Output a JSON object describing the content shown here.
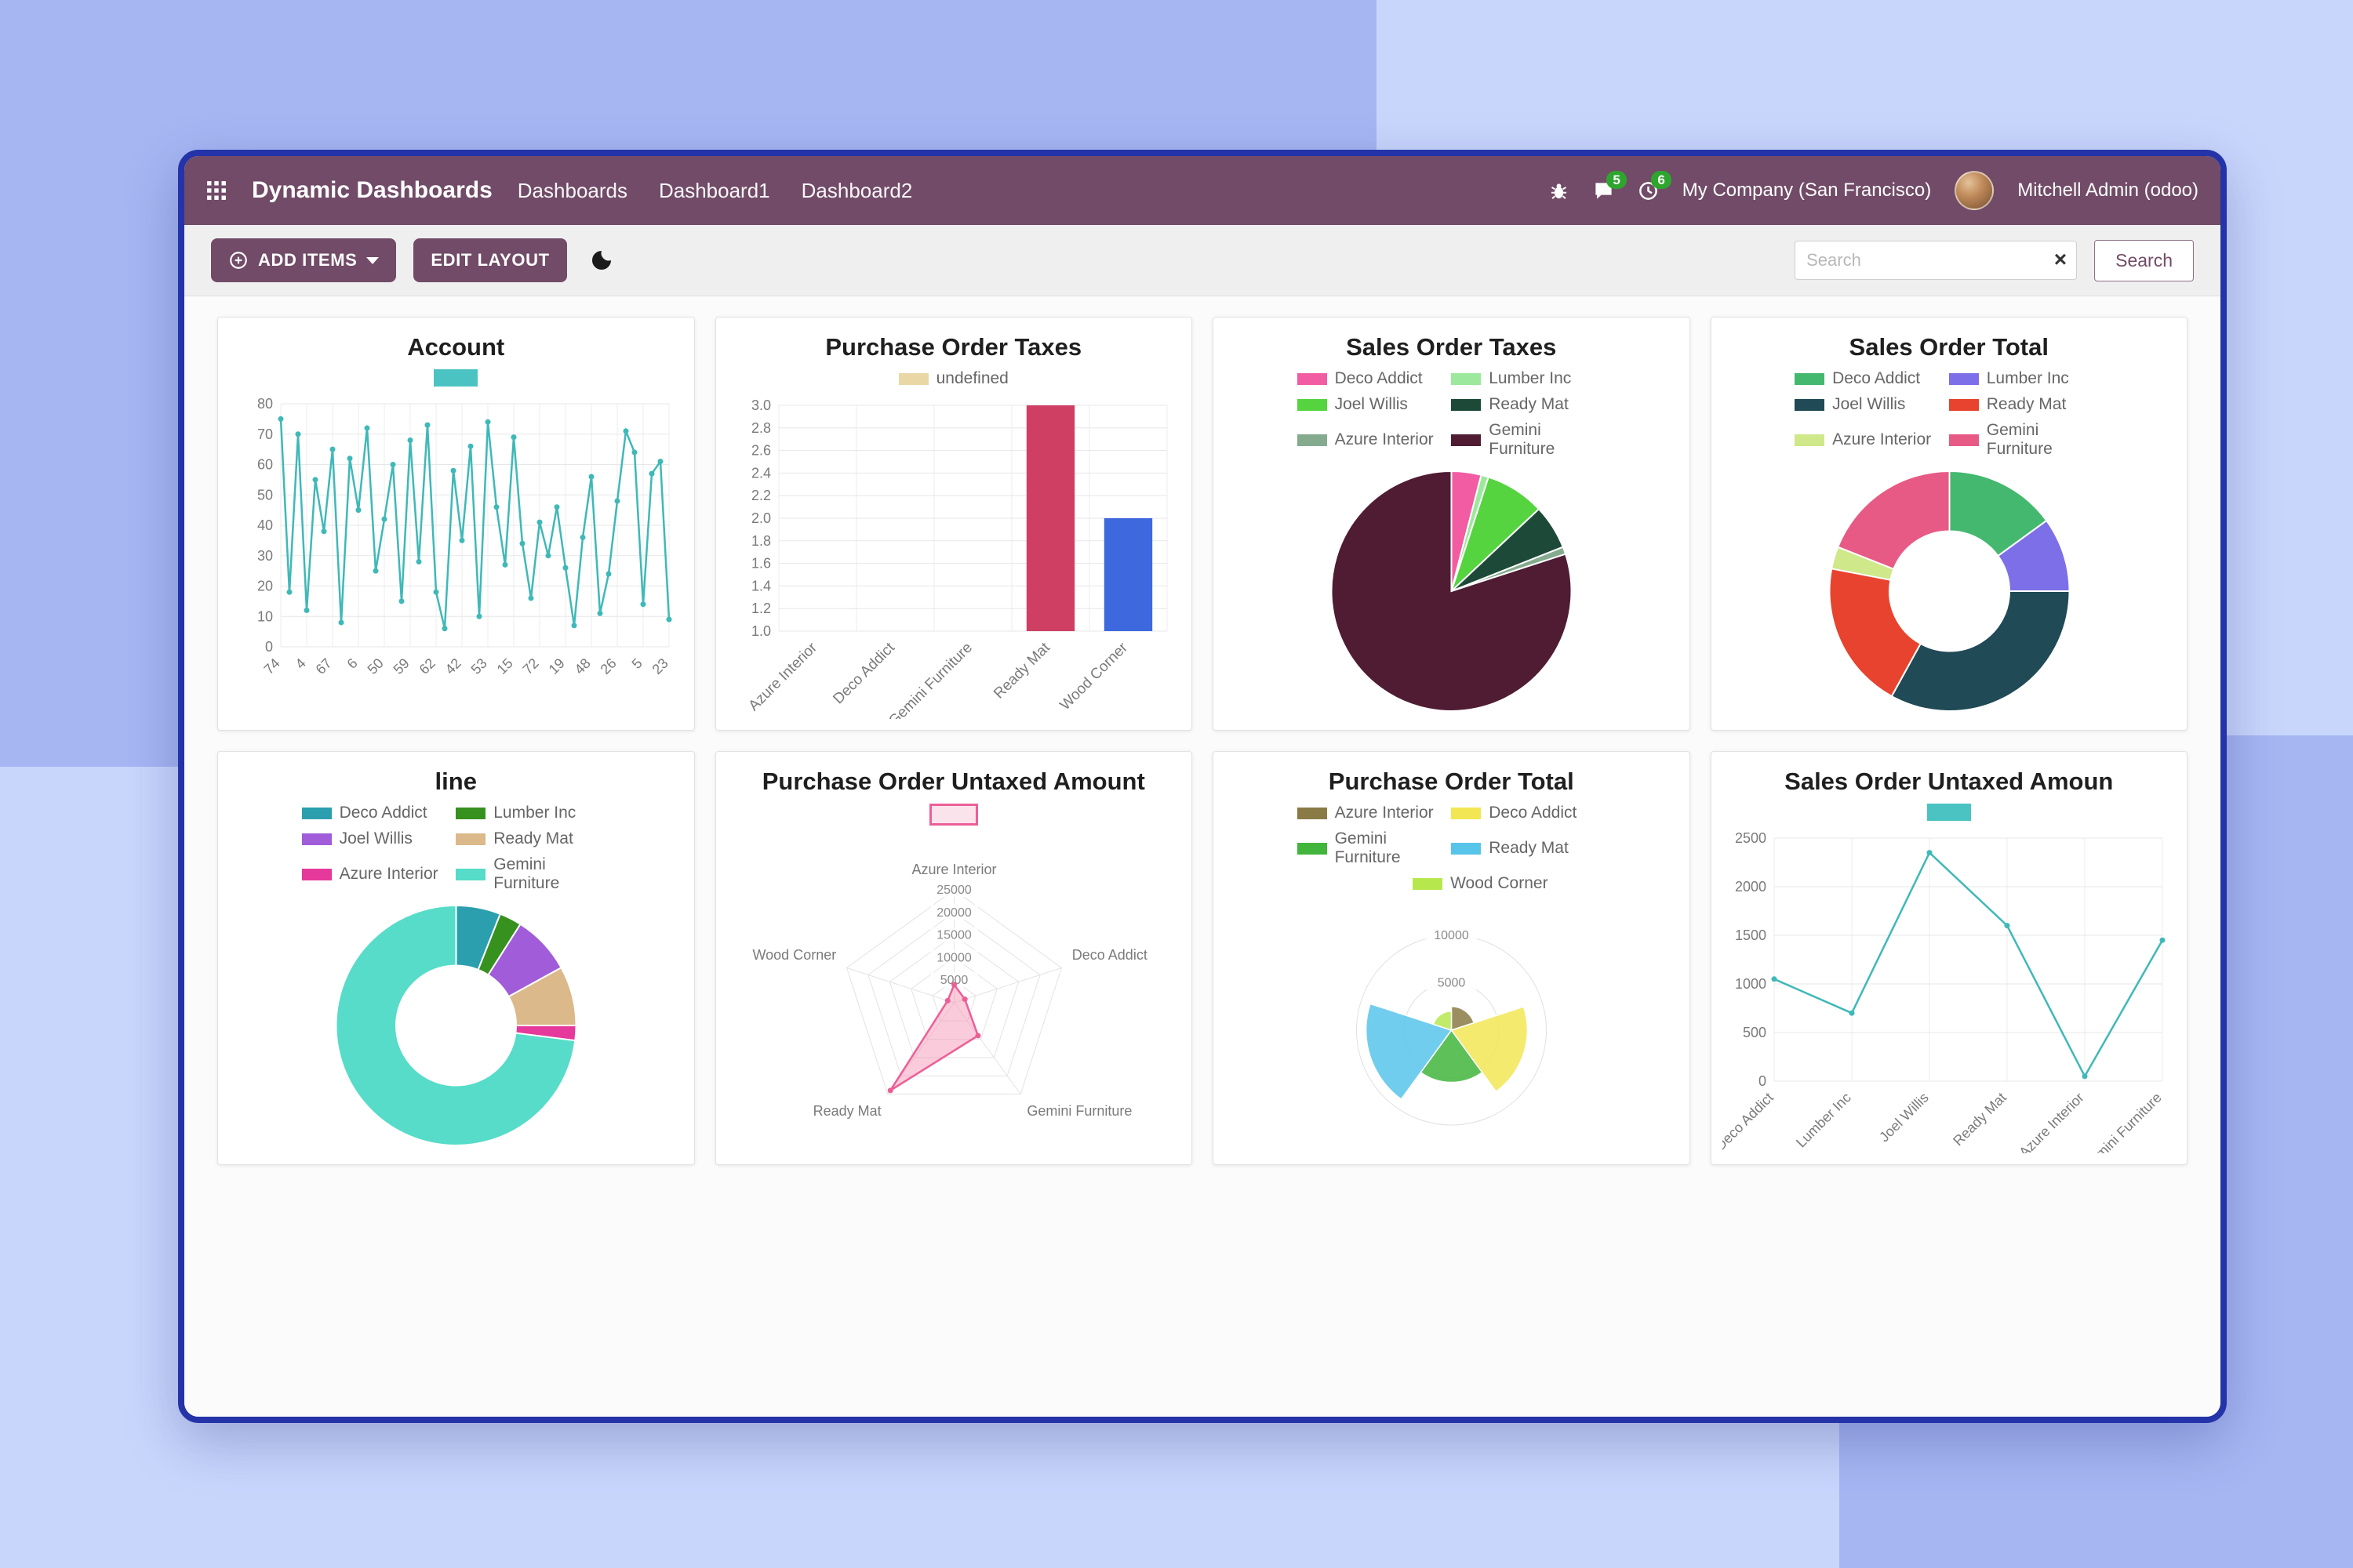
{
  "navbar": {
    "title": "Dynamic Dashboards",
    "menu": [
      "Dashboards",
      "Dashboard1",
      "Dashboard2"
    ],
    "badges": {
      "messages": "5",
      "activities": "6"
    },
    "company": "My Company (San Francisco)",
    "user": "Mitchell Admin (odoo)",
    "color": "#714B67"
  },
  "controlbar": {
    "add_items_label": "ADD ITEMS",
    "edit_layout_label": "EDIT LAYOUT",
    "search_placeholder": "Search",
    "search_button_label": "Search"
  },
  "chart_data": [
    {
      "title": "Account",
      "type": "line",
      "color": "#3fb8b8",
      "legend": [
        {
          "label": "",
          "color": "#4cc3c3"
        }
      ],
      "labels": [
        "74",
        "4",
        "67",
        "6",
        "50",
        "59",
        "62",
        "42",
        "53",
        "15",
        "72",
        "19",
        "48",
        "26",
        "5",
        "23"
      ],
      "values": [
        75,
        18,
        70,
        12,
        55,
        38,
        65,
        8,
        62,
        45,
        72,
        25,
        42,
        60,
        15,
        68,
        28,
        73,
        18,
        6,
        58,
        35,
        66,
        10,
        74,
        46,
        27,
        69,
        34,
        16,
        41,
        30,
        46,
        26,
        7,
        36,
        56,
        11,
        24,
        48,
        71,
        64,
        14,
        57,
        61,
        9
      ],
      "ylim": [
        0,
        80
      ],
      "yticks": [
        0,
        10,
        20,
        30,
        40,
        50,
        60,
        70,
        80
      ],
      "grid": true
    },
    {
      "title": "Purchase Order Taxes",
      "type": "bar",
      "legend": [
        {
          "label": "undefined",
          "color": "#e9d8a6"
        }
      ],
      "categories": [
        "Azure Interior",
        "Deco Addict",
        "Gemini Furniture",
        "Ready Mat",
        "Wood Corner"
      ],
      "values": [
        0,
        0,
        0,
        3,
        2
      ],
      "bar_colors": [
        "#e9d8a6",
        "#e9d8a6",
        "#e9d8a6",
        "#ce3f63",
        "#3e68de"
      ],
      "ylim": [
        1,
        3
      ],
      "yticks": [
        "1.0",
        "1.2",
        "1.4",
        "1.6",
        "1.8",
        "2.0",
        "2.2",
        "2.4",
        "2.6",
        "2.8",
        "3.0"
      ],
      "grid": true
    },
    {
      "title": "Sales Order Taxes",
      "type": "pie",
      "series": [
        {
          "name": "Deco Addict",
          "value": 4,
          "color": "#f25ca2"
        },
        {
          "name": "Lumber Inc",
          "value": 1,
          "color": "#9ce89c"
        },
        {
          "name": "Joel Willis",
          "value": 8,
          "color": "#55d43f"
        },
        {
          "name": "Ready Mat",
          "value": 6,
          "color": "#1d4a38"
        },
        {
          "name": "Azure Interior",
          "value": 1,
          "color": "#84ab8e"
        },
        {
          "name": "Gemini Furniture",
          "value": 80,
          "color": "#4f1c33"
        }
      ]
    },
    {
      "title": "Sales Order Total",
      "type": "doughnut",
      "series": [
        {
          "name": "Deco Addict",
          "value": 15,
          "color": "#44b86f"
        },
        {
          "name": "Lumber Inc",
          "value": 10,
          "color": "#7d6fe8"
        },
        {
          "name": "Joel Willis",
          "value": 33,
          "color": "#1f4a56"
        },
        {
          "name": "Ready Mat",
          "value": 20,
          "color": "#e8432e"
        },
        {
          "name": "Azure Interior",
          "value": 3,
          "color": "#cfe88a"
        },
        {
          "name": "Gemini Furniture",
          "value": 19,
          "color": "#e85a86"
        }
      ]
    },
    {
      "title": "line",
      "type": "doughnut",
      "series": [
        {
          "name": "Deco Addict",
          "value": 6,
          "color": "#2b9fae"
        },
        {
          "name": "Lumber Inc",
          "value": 3,
          "color": "#37911f"
        },
        {
          "name": "Joel Willis",
          "value": 8,
          "color": "#a05cd9"
        },
        {
          "name": "Ready Mat",
          "value": 8,
          "color": "#dcb98a"
        },
        {
          "name": "Azure Interior",
          "value": 2,
          "color": "#e5399b"
        },
        {
          "name": "Gemini Furniture",
          "value": 73,
          "color": "#56dcc8"
        }
      ]
    },
    {
      "title": "Purchase Order Untaxed Amount",
      "type": "radar",
      "legend": [
        {
          "label": "",
          "color": "#fbe3ec",
          "border": "#ec5f96"
        }
      ],
      "categories": [
        "Azure Interior",
        "Deco Addict",
        "Gemini Furniture",
        "Ready Mat",
        "Wood Corner"
      ],
      "values": [
        4000,
        2500,
        9000,
        24000,
        1500
      ],
      "ylim": [
        0,
        25000
      ],
      "yticks": [
        5000,
        10000,
        15000,
        20000,
        25000
      ],
      "fill": "rgba(244,140,175,0.45)",
      "line": "#ec5f96"
    },
    {
      "title": "Purchase Order Total",
      "type": "polarArea",
      "series": [
        {
          "name": "Azure Interior",
          "value": 2500,
          "color": "#8a7a45"
        },
        {
          "name": "Deco Addict",
          "value": 8000,
          "color": "#f2e654"
        },
        {
          "name": "Gemini Furniture",
          "value": 5500,
          "color": "#42b53c"
        },
        {
          "name": "Ready Mat",
          "value": 9000,
          "color": "#58c4ea"
        },
        {
          "name": "Wood Corner",
          "value": 2000,
          "color": "#b6e84e"
        }
      ],
      "ylim": [
        0,
        10000
      ],
      "yticks": [
        5000,
        10000
      ]
    },
    {
      "title": "Sales Order Untaxed Amoun",
      "type": "line",
      "color": "#3fb8b8",
      "legend": [
        {
          "label": "",
          "color": "#4cc3c3"
        }
      ],
      "labels": [
        "Deco Addict",
        "Lumber Inc",
        "Joel Willis",
        "Ready Mat",
        "Azure Interior",
        "Gemini Furniture"
      ],
      "values": [
        1050,
        700,
        2350,
        1600,
        50,
        1450
      ],
      "ylim": [
        0,
        2500
      ],
      "yticks": [
        0,
        500,
        1000,
        1500,
        2000,
        2500
      ],
      "grid": true
    }
  ]
}
